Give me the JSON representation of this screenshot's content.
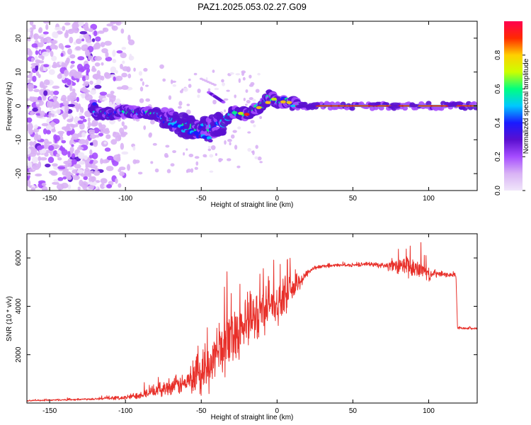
{
  "figure": {
    "title": "PAZ1.2025.053.02.27.G09"
  },
  "chart_data": [
    {
      "type": "heatmap",
      "title": "PAZ1.2025.053.02.27.G09",
      "xlabel": "Height of straight line (km)",
      "ylabel": "Frequency (Hz)",
      "xlim": [
        -165,
        132
      ],
      "ylim": [
        -25,
        25
      ],
      "xticks": [
        -150,
        -100,
        -50,
        0,
        50,
        100
      ],
      "yticks": [
        -20,
        -10,
        0,
        10,
        20
      ],
      "colorbar": {
        "label": "Normalized spectral amplitude",
        "ticks": [
          0.0,
          0.2,
          0.4,
          0.6,
          0.8
        ],
        "range": [
          0,
          1
        ],
        "colormap": [
          "#f0e6fa",
          "#d9b3f5",
          "#a64dff",
          "#5a0fd0",
          "#1a1aff",
          "#00c8ff",
          "#00ff80",
          "#ccff00",
          "#ffd000",
          "#ff2a00",
          "#ff0050"
        ]
      },
      "ridge": [
        [
          -120,
          -2
        ],
        [
          -110,
          -2.5
        ],
        [
          -100,
          -1.5
        ],
        [
          -90,
          -2
        ],
        [
          -80,
          -2.5
        ],
        [
          -70,
          -4.5
        ],
        [
          -60,
          -6
        ],
        [
          -50,
          -7
        ],
        [
          -45,
          -6.5
        ],
        [
          -40,
          -5.5
        ],
        [
          -35,
          -5
        ],
        [
          -30,
          -2
        ],
        [
          -25,
          -2
        ],
        [
          -20,
          -2.5
        ],
        [
          -15,
          -1
        ],
        [
          -10,
          0
        ],
        [
          -5,
          3
        ],
        [
          0,
          1
        ],
        [
          5,
          1.5
        ],
        [
          10,
          1
        ],
        [
          15,
          0
        ],
        [
          50,
          0
        ],
        [
          100,
          0
        ],
        [
          132,
          0
        ]
      ]
    },
    {
      "type": "line",
      "xlabel": "Height of straight line (km)",
      "ylabel": "SNR (10 * v/v)",
      "xlim": [
        -165,
        132
      ],
      "ylim": [
        0,
        7000
      ],
      "xticks": [
        -150,
        -100,
        -50,
        0,
        50,
        100
      ],
      "yticks": [
        2000,
        4000,
        6000
      ],
      "color": "#e8302a",
      "series": [
        {
          "x": [
            -165,
            -150,
            -130,
            -110,
            -100,
            -90,
            -80,
            -70,
            -60,
            -50,
            -45,
            -40,
            -35,
            -30,
            -25,
            -20,
            -15,
            -10,
            -5,
            0,
            5,
            10,
            15,
            20,
            25,
            30,
            40,
            50,
            60,
            70,
            80,
            85,
            90,
            95,
            100,
            105,
            110,
            118,
            119,
            120,
            125,
            132
          ],
          "y": [
            100,
            120,
            150,
            200,
            220,
            350,
            500,
            700,
            800,
            1000,
            1500,
            2000,
            2400,
            2800,
            3100,
            3300,
            3500,
            3900,
            4200,
            4000,
            4500,
            4700,
            5000,
            5400,
            5600,
            5650,
            5700,
            5700,
            5750,
            5700,
            5600,
            5700,
            5500,
            5600,
            5300,
            5350,
            5300,
            5300,
            3100,
            3100,
            3100,
            3080
          ],
          "noise": [
            30,
            40,
            50,
            80,
            120,
            200,
            300,
            450,
            550,
            900,
            1200,
            1400,
            1500,
            1500,
            1500,
            1400,
            1400,
            1300,
            1200,
            1000,
            900,
            700,
            400,
            200,
            100,
            80,
            80,
            80,
            100,
            150,
            400,
            600,
            500,
            500,
            300,
            200,
            120,
            80,
            60,
            60,
            60,
            60
          ]
        }
      ]
    }
  ]
}
